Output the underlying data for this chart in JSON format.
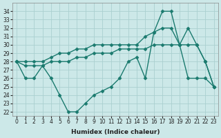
{
  "xlabel": "Humidex (Indice chaleur)",
  "x": [
    0,
    1,
    2,
    3,
    4,
    5,
    6,
    7,
    8,
    9,
    10,
    11,
    12,
    13,
    14,
    15,
    16,
    17,
    18,
    19,
    20,
    21,
    22,
    23
  ],
  "line_top": [
    28,
    28,
    28,
    28,
    28.5,
    29,
    29,
    29.5,
    29.5,
    30,
    30,
    30,
    30,
    30,
    30,
    31,
    31.5,
    32,
    32,
    30,
    32,
    30,
    28,
    25
  ],
  "line_mid": [
    28,
    27.5,
    27.5,
    27.5,
    28,
    28,
    28,
    28.5,
    28.5,
    29,
    29,
    29,
    29.5,
    29.5,
    29.5,
    29.5,
    30,
    30,
    30,
    30,
    30,
    30,
    28,
    25
  ],
  "line_bot": [
    28,
    26,
    26,
    27.5,
    26,
    24,
    22,
    22,
    23,
    24,
    24.5,
    25,
    26,
    28,
    28.5,
    26,
    31.5,
    34,
    34,
    30,
    26,
    26,
    26,
    25
  ],
  "ylim": [
    21.5,
    35
  ],
  "xlim": [
    -0.5,
    23.5
  ],
  "yticks": [
    22,
    23,
    24,
    25,
    26,
    27,
    28,
    29,
    30,
    31,
    32,
    33,
    34
  ],
  "xticks": [
    0,
    1,
    2,
    3,
    4,
    5,
    6,
    7,
    8,
    9,
    10,
    11,
    12,
    13,
    14,
    15,
    16,
    17,
    18,
    19,
    20,
    21,
    22,
    23
  ],
  "line_color": "#1a7a6e",
  "bg_color": "#cce8e8",
  "grid_color": "#aad0d0",
  "marker": "D",
  "markersize": 2.5,
  "linewidth": 1.0
}
